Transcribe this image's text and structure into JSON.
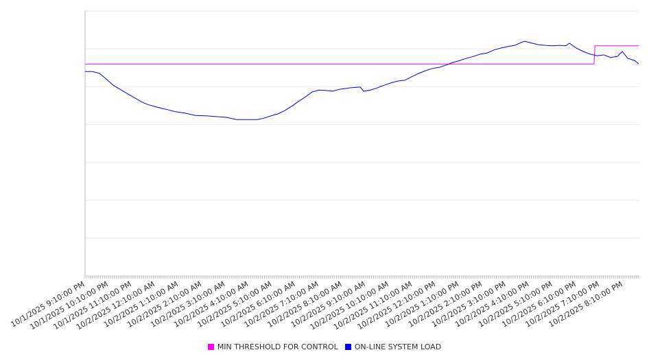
{
  "chart_data": {
    "type": "line",
    "title": "",
    "xlabel": "",
    "ylabel": "",
    "x_unit": "hours since 10/1/2025 9:10:00 PM",
    "xlim": [
      0,
      23.67
    ],
    "ylim": [
      0,
      7
    ],
    "grid": true,
    "legend_position": "bottom",
    "tick_labels": [
      "10/1/2025 9:10:00 PM",
      "10/1/2025 10:10:00 PM",
      "10/1/2025 11:10:00 PM",
      "10/2/2025 12:10:00 AM",
      "10/2/2025 1:10:00 AM",
      "10/2/2025 2:10:00 AM",
      "10/2/2025 3:10:00 AM",
      "10/2/2025 4:10:00 AM",
      "10/2/2025 5:10:00 AM",
      "10/2/2025 6:10:00 AM",
      "10/2/2025 7:10:00 AM",
      "10/2/2025 8:10:00 AM",
      "10/2/2025 9:10:00 AM",
      "10/2/2025 10:10:00 AM",
      "10/2/2025 11:10:00 AM",
      "10/2/2025 12:10:00 PM",
      "10/2/2025 1:10:00 PM",
      "10/2/2025 2:10:00 PM",
      "10/2/2025 3:10:00 PM",
      "10/2/2025 4:10:00 PM",
      "10/2/2025 5:10:00 PM",
      "10/2/2025 6:10:00 PM",
      "10/2/2025 7:10:00 PM",
      "10/2/2025 8:10:00 PM"
    ],
    "series": [
      {
        "name": "MIN THRESHOLD FOR CONTROL",
        "color": "#ff00ff",
        "x": [
          0,
          21.76,
          21.8,
          23.67
        ],
        "y": [
          5.6,
          5.6,
          6.08,
          6.08
        ]
      },
      {
        "name": "ON-LINE SYSTEM LOAD",
        "color": "#0000ff",
        "x": [
          0,
          0.32,
          0.62,
          0.91,
          1.2,
          1.5,
          1.79,
          2.08,
          2.38,
          2.67,
          2.96,
          3.26,
          3.55,
          3.84,
          4.28,
          4.72,
          5.16,
          5.6,
          6.04,
          6.48,
          6.92,
          7.36,
          7.66,
          7.95,
          8.24,
          8.54,
          8.83,
          9.12,
          9.42,
          9.71,
          10.0,
          10.3,
          10.59,
          10.88,
          11.32,
          11.76,
          11.91,
          12.2,
          12.5,
          12.79,
          13.08,
          13.38,
          13.67,
          13.96,
          14.26,
          14.55,
          14.84,
          15.14,
          15.43,
          15.72,
          16.02,
          16.31,
          16.6,
          16.9,
          17.19,
          17.48,
          17.78,
          18.07,
          18.36,
          18.66,
          18.8,
          19.1,
          19.39,
          19.68,
          19.98,
          20.27,
          20.56,
          20.71,
          21.0,
          21.3,
          21.59,
          21.88,
          22.18,
          22.47,
          22.76,
          22.97,
          23.2,
          23.5,
          23.67
        ],
        "y": [
          5.4,
          5.4,
          5.35,
          5.2,
          5.04,
          4.93,
          4.82,
          4.72,
          4.61,
          4.53,
          4.48,
          4.43,
          4.39,
          4.34,
          4.3,
          4.24,
          4.23,
          4.21,
          4.19,
          4.13,
          4.13,
          4.13,
          4.17,
          4.23,
          4.28,
          4.37,
          4.48,
          4.61,
          4.73,
          4.86,
          4.91,
          4.9,
          4.88,
          4.93,
          4.97,
          4.99,
          4.88,
          4.91,
          4.97,
          5.04,
          5.1,
          5.15,
          5.17,
          5.26,
          5.35,
          5.42,
          5.48,
          5.51,
          5.57,
          5.64,
          5.69,
          5.75,
          5.8,
          5.86,
          5.89,
          5.97,
          6.02,
          6.06,
          6.09,
          6.17,
          6.2,
          6.15,
          6.11,
          6.09,
          6.08,
          6.09,
          6.08,
          6.15,
          6.02,
          5.93,
          5.86,
          5.82,
          5.84,
          5.77,
          5.8,
          5.93,
          5.75,
          5.69,
          5.6
        ]
      }
    ]
  }
}
